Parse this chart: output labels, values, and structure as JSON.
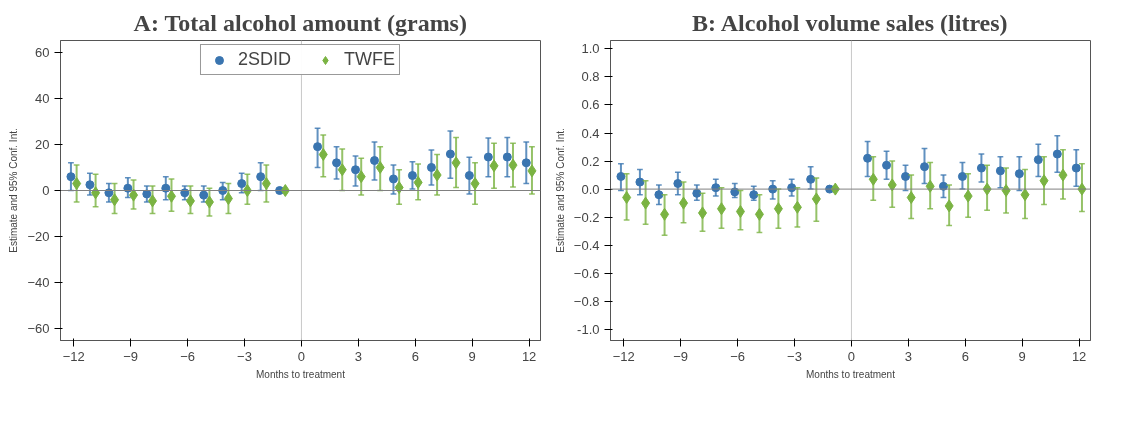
{
  "chart_data": [
    {
      "type": "scatter",
      "title": "A: Total alcohol amount (grams)",
      "xlabel": "Months to treatment",
      "ylabel": "Estimate and 95% Conf. Int.",
      "legend": "top",
      "grid": false,
      "xlim": [
        -12.7,
        12.6
      ],
      "xticks": [
        -12,
        -9,
        -6,
        -3,
        0,
        3,
        6,
        9,
        12
      ],
      "ylim": [
        -65,
        65
      ],
      "yticks": [
        -60,
        -40,
        -20,
        0,
        20,
        40,
        60
      ],
      "ref_lines": [
        {
          "axis": "x",
          "value": 0,
          "color": "#c8c8c8"
        },
        {
          "axis": "y",
          "value": 0,
          "color": "#808080"
        }
      ],
      "series": [
        {
          "name": "2SDID",
          "color": "#3a75b0",
          "marker": "circle",
          "x": [
            -12.15,
            -11.15,
            -10.15,
            -9.15,
            -8.15,
            -7.15,
            -6.15,
            -5.15,
            -4.15,
            -3.15,
            -2.15,
            -1.15,
            0.85,
            1.85,
            2.85,
            3.85,
            4.85,
            5.85,
            6.85,
            7.85,
            8.85,
            9.85,
            10.85,
            11.85
          ],
          "values": [
            6,
            2.5,
            -1,
            1,
            -1.5,
            1,
            -1,
            -2,
            0,
            3,
            6,
            0,
            19,
            12,
            9,
            13,
            5,
            6.5,
            10,
            15.8,
            6.5,
            14.5,
            14.5,
            12
          ],
          "errors": [
            [
              0,
              12
            ],
            [
              -2,
              7.5
            ],
            [
              -5,
              3
            ],
            [
              -3,
              5.5
            ],
            [
              -5,
              2
            ],
            [
              -4,
              6
            ],
            [
              -4,
              2
            ],
            [
              -5,
              2
            ],
            [
              -4,
              3.5
            ],
            [
              -1,
              7.5
            ],
            [
              0,
              12
            ],
            null,
            [
              10,
              27
            ],
            [
              5,
              19
            ],
            [
              2,
              15
            ],
            [
              4.5,
              21
            ],
            [
              -1.5,
              11
            ],
            [
              0.7,
              12.5
            ],
            [
              2.4,
              17.6
            ],
            [
              5.3,
              25.8
            ],
            [
              -1.5,
              14.4
            ],
            [
              6,
              22.7
            ],
            [
              6,
              23
            ],
            [
              3,
              21
            ]
          ]
        },
        {
          "name": "TWFE",
          "color": "#7ab342",
          "marker": "diamond",
          "x": [
            -11.85,
            -10.85,
            -9.85,
            -8.85,
            -7.85,
            -6.85,
            -5.85,
            -4.85,
            -3.85,
            -2.85,
            -1.85,
            -0.85,
            1.15,
            2.15,
            3.15,
            4.15,
            5.15,
            6.15,
            7.15,
            8.15,
            9.15,
            10.15,
            11.15,
            12.15
          ],
          "values": [
            3,
            -1,
            -4,
            -2,
            -4.5,
            -2.5,
            -4.5,
            -5,
            -3.5,
            0,
            3,
            0,
            15.6,
            9,
            6,
            10,
            1.3,
            3.5,
            6.7,
            12,
            3,
            10.7,
            11,
            8.5
          ],
          "errors": [
            [
              -5,
              11
            ],
            [
              -7,
              7
            ],
            [
              -10,
              3
            ],
            [
              -8,
              4.5
            ],
            [
              -10,
              2
            ],
            [
              -9,
              5
            ],
            [
              -10,
              2
            ],
            [
              -11,
              1
            ],
            [
              -10,
              3
            ],
            [
              -6,
              7
            ],
            [
              -5,
              11
            ],
            null,
            [
              6,
              24
            ],
            [
              0,
              18
            ],
            [
              -2,
              14
            ],
            [
              0,
              19
            ],
            [
              -6,
              9
            ],
            [
              -4,
              11.5
            ],
            [
              -2,
              15.6
            ],
            [
              1.3,
              23
            ],
            [
              -6,
              12
            ],
            [
              1,
              20.5
            ],
            [
              1.5,
              20.5
            ],
            [
              -1.5,
              19
            ]
          ]
        }
      ]
    },
    {
      "type": "scatter",
      "title": "B: Alcohol volume sales (litres)",
      "xlabel": "Months to treatment",
      "ylabel": "Estimate and 95% Conf. Int.",
      "legend": false,
      "grid": false,
      "xlim": [
        -12.7,
        12.6
      ],
      "xticks": [
        -12,
        -9,
        -6,
        -3,
        0,
        3,
        6,
        9,
        12
      ],
      "ylim": [
        -1.08,
        1.06
      ],
      "yticks": [
        {
          "value": -1,
          "label": "-1.0"
        },
        -0.8,
        -0.6,
        -0.4,
        -0.2,
        {
          "value": 0,
          "label": "0.0"
        },
        0.2,
        0.4,
        0.6,
        0.8,
        {
          "value": 1,
          "label": "1.0"
        }
      ],
      "ref_lines": [
        {
          "axis": "x",
          "value": 0,
          "color": "#c8c8c8"
        },
        {
          "axis": "y",
          "value": 0,
          "color": "#808080"
        }
      ],
      "series": [
        {
          "color": "#3a75b0",
          "marker": "circle",
          "x": [
            -12.15,
            -11.15,
            -10.15,
            -9.15,
            -8.15,
            -7.15,
            -6.15,
            -5.15,
            -4.15,
            -3.15,
            -2.15,
            -1.15,
            0.85,
            1.85,
            2.85,
            3.85,
            4.85,
            5.85,
            6.85,
            7.85,
            8.85,
            9.85,
            10.85,
            11.85
          ],
          "values": [
            0.09,
            0.05,
            -0.04,
            0.04,
            -0.03,
            0.01,
            -0.02,
            -0.04,
            0,
            0.01,
            0.07,
            0,
            0.22,
            0.17,
            0.09,
            0.16,
            0.02,
            0.09,
            0.15,
            0.13,
            0.11,
            0.21,
            0.25,
            0.15
          ],
          "errors": [
            [
              -0.01,
              0.18
            ],
            [
              -0.04,
              0.14
            ],
            [
              -0.11,
              0.03
            ],
            [
              -0.04,
              0.12
            ],
            [
              -0.08,
              0.03
            ],
            [
              -0.05,
              0.07
            ],
            [
              -0.06,
              0.04
            ],
            [
              -0.08,
              0.02
            ],
            [
              -0.07,
              0.06
            ],
            [
              -0.05,
              0.07
            ],
            [
              0,
              0.16
            ],
            null,
            [
              0.09,
              0.34
            ],
            [
              0.07,
              0.27
            ],
            [
              -0.01,
              0.17
            ],
            [
              0.04,
              0.29
            ],
            [
              -0.06,
              0.1
            ],
            [
              0,
              0.19
            ],
            [
              0.05,
              0.25
            ],
            [
              0.01,
              0.23
            ],
            [
              -0.01,
              0.23
            ],
            [
              0.09,
              0.32
            ],
            [
              0.12,
              0.38
            ],
            [
              0.02,
              0.28
            ]
          ]
        },
        {
          "color": "#7ab342",
          "marker": "diamond",
          "x": [
            -11.85,
            -10.85,
            -9.85,
            -8.85,
            -7.85,
            -6.85,
            -5.85,
            -4.85,
            -3.85,
            -2.85,
            -1.85,
            -0.85,
            1.15,
            2.15,
            3.15,
            4.15,
            5.15,
            6.15,
            7.15,
            8.15,
            9.15,
            10.15,
            11.15,
            12.15
          ],
          "values": [
            -0.06,
            -0.1,
            -0.18,
            -0.1,
            -0.17,
            -0.14,
            -0.16,
            -0.18,
            -0.14,
            -0.13,
            -0.07,
            0,
            0.07,
            0.03,
            -0.06,
            0.02,
            -0.12,
            -0.05,
            0,
            -0.01,
            -0.04,
            0.06,
            0.1,
            0
          ],
          "errors": [
            [
              -0.22,
              0.11
            ],
            [
              -0.25,
              0.06
            ],
            [
              -0.33,
              -0.04
            ],
            [
              -0.24,
              0.05
            ],
            [
              -0.3,
              -0.03
            ],
            [
              -0.28,
              0.01
            ],
            [
              -0.29,
              -0.01
            ],
            [
              -0.31,
              -0.04
            ],
            [
              -0.28,
              0
            ],
            [
              -0.27,
              0.01
            ],
            [
              -0.23,
              0.08
            ],
            null,
            [
              -0.08,
              0.23
            ],
            [
              -0.13,
              0.2
            ],
            [
              -0.21,
              0.1
            ],
            [
              -0.14,
              0.19
            ],
            [
              -0.26,
              0.03
            ],
            [
              -0.2,
              0.11
            ],
            [
              -0.15,
              0.17
            ],
            [
              -0.17,
              0.15
            ],
            [
              -0.21,
              0.14
            ],
            [
              -0.11,
              0.23
            ],
            [
              -0.07,
              0.28
            ],
            [
              -0.16,
              0.18
            ]
          ]
        }
      ]
    }
  ]
}
